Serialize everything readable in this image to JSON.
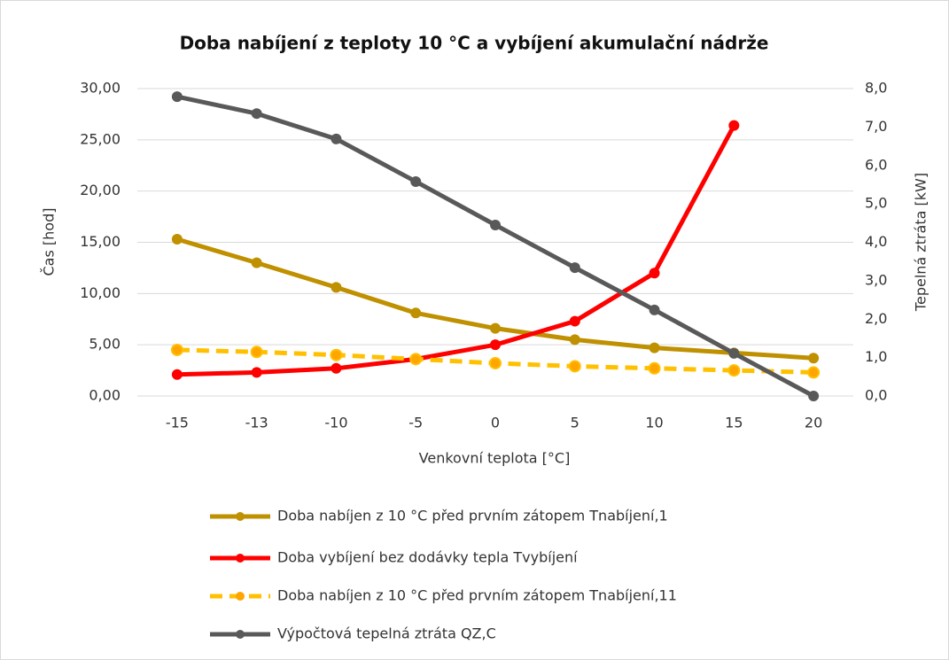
{
  "chart_data": {
    "type": "line",
    "title": "Doba nabíjení  z teploty 10 °C a vybíjení akumulační nádrže",
    "xlabel": "Venkovní teplota [°C]",
    "ylabel": "Čas [hod]",
    "y2label": "Tepelná ztráta [kW]",
    "categories": [
      "-15",
      "-13",
      "-10",
      "-5",
      "0",
      "5",
      "10",
      "15",
      "20"
    ],
    "ylim": [
      0,
      30
    ],
    "yticks": [
      {
        "value": 0,
        "label": "0,00"
      },
      {
        "value": 5,
        "label": "5,00"
      },
      {
        "value": 10,
        "label": "10,00"
      },
      {
        "value": 15,
        "label": "15,00"
      },
      {
        "value": 20,
        "label": "20,00"
      },
      {
        "value": 25,
        "label": "25,00"
      },
      {
        "value": 30,
        "label": "30,00"
      }
    ],
    "y2lim": [
      0,
      8
    ],
    "y2ticks": [
      {
        "value": 0,
        "label": "0,0"
      },
      {
        "value": 1,
        "label": "1,0"
      },
      {
        "value": 2,
        "label": "2,0"
      },
      {
        "value": 3,
        "label": "3,0"
      },
      {
        "value": 4,
        "label": "4,0"
      },
      {
        "value": 5,
        "label": "5,0"
      },
      {
        "value": 6,
        "label": "6,0"
      },
      {
        "value": 7,
        "label": "7,0"
      },
      {
        "value": 8,
        "label": "8,0"
      }
    ],
    "grid": true,
    "legend": "bottom",
    "series": [
      {
        "name": "Doba nabíjen z 10 °C před prvním zátopem Tnabíjení,1",
        "color": "#bf9000",
        "values": [
          15.3,
          13.0,
          10.6,
          8.1,
          6.6,
          5.5,
          4.7,
          4.2,
          3.7
        ]
      },
      {
        "name": "Doba vybíjení bez dodávky tepla Tvybíjení",
        "color": "#ff0000",
        "values": [
          2.1,
          2.3,
          2.7,
          3.6,
          5.0,
          7.3,
          12.0,
          26.4,
          null
        ]
      },
      {
        "name": "Doba nabíjen z 10 °C před prvním zátopem Tnabíjení,11",
        "color": "#ffc000",
        "dashed": true,
        "values": [
          4.5,
          4.3,
          4.0,
          3.6,
          3.2,
          2.9,
          2.7,
          2.5,
          2.3
        ]
      },
      {
        "name": "Výpočtová tepelná ztráta  QZ,C",
        "color": "#595959",
        "axis": "y2",
        "values": [
          7.79,
          7.35,
          6.69,
          5.58,
          4.45,
          3.34,
          2.24,
          1.11,
          0
        ]
      }
    ]
  }
}
